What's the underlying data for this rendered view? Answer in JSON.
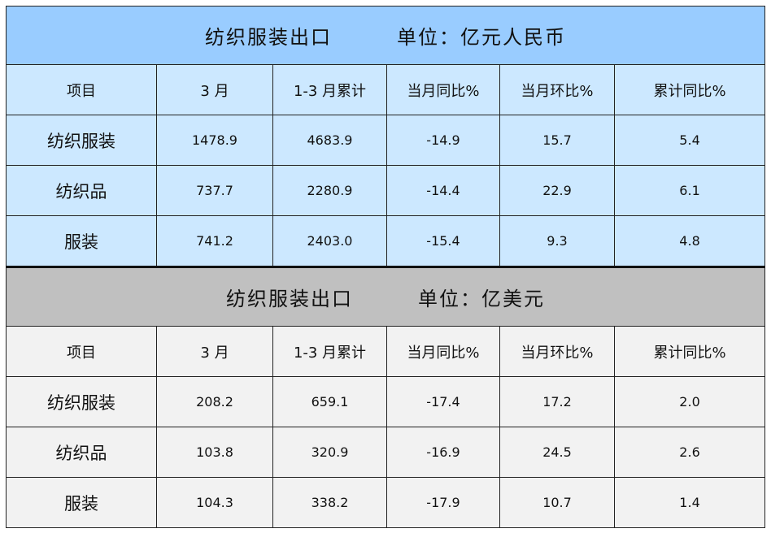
{
  "chart_data": {
    "type": "table",
    "tables": [
      {
        "title": "纺织服装出口",
        "unit": "单位：亿元人民币",
        "columns": [
          "项目",
          "3 月",
          "1-3 月累计",
          "当月同比%",
          "当月环比%",
          "累计同比%"
        ],
        "rows": [
          [
            "纺织服装",
            "1478.9",
            "4683.9",
            "-14.9",
            "15.7",
            "5.4"
          ],
          [
            "纺织品",
            "737.7",
            "2280.9",
            "-14.4",
            "22.9",
            "6.1"
          ],
          [
            "服装",
            "741.2",
            "2403.0",
            "-15.4",
            "9.3",
            "4.8"
          ]
        ]
      },
      {
        "title": "纺织服装出口",
        "unit": "单位：亿美元",
        "columns": [
          "项目",
          "3 月",
          "1-3 月累计",
          "当月同比%",
          "当月环比%",
          "累计同比%"
        ],
        "rows": [
          [
            "纺织服装",
            "208.2",
            "659.1",
            "-17.4",
            "17.2",
            "2.0"
          ],
          [
            "纺织品",
            "103.8",
            "320.9",
            "-16.9",
            "24.5",
            "2.6"
          ],
          [
            "服装",
            "104.3",
            "338.2",
            "-17.9",
            "10.7",
            "1.4"
          ]
        ]
      }
    ],
    "colors": {
      "rmb_title": "#99ccff",
      "rmb_rows": "#cce8ff",
      "usd_title": "#c0c0c0",
      "usd_rows": "#f2f2f2"
    }
  }
}
